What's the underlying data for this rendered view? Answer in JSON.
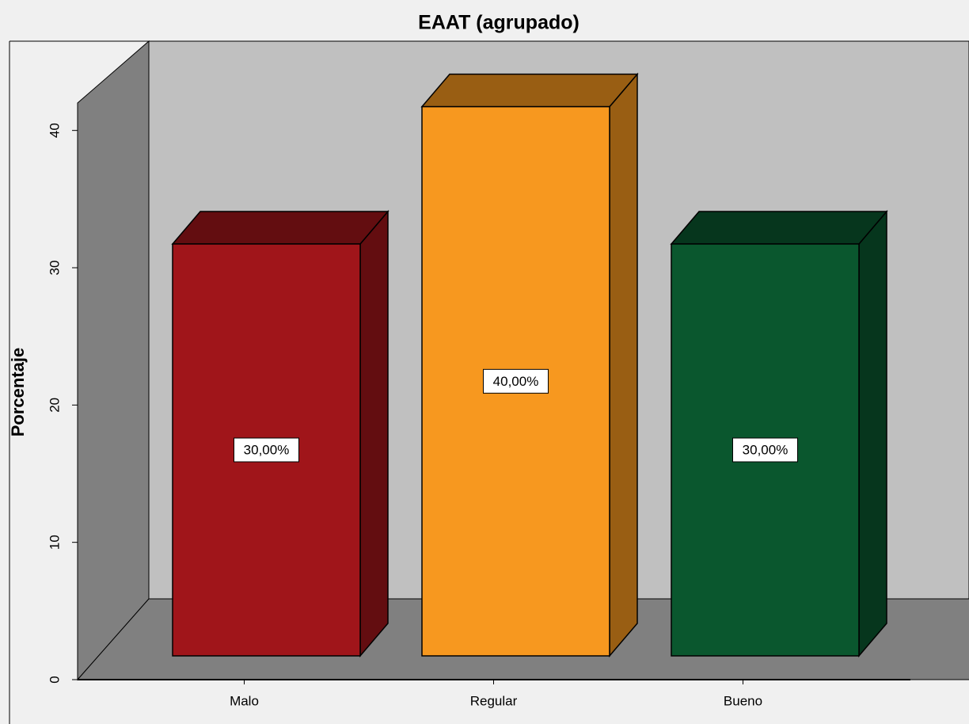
{
  "chart_data": {
    "type": "bar3d",
    "title": "EAAT (agrupado)",
    "y_label": "Porcentaje",
    "categories": [
      "Malo",
      "Regular",
      "Bueno"
    ],
    "values": [
      30,
      40,
      30
    ],
    "value_labels": [
      "30,00%",
      "40,00%",
      "30,00%"
    ],
    "colors": [
      "#a0151a",
      "#f7981f",
      "#0a572e"
    ],
    "ylim": [
      0,
      42
    ],
    "yticks": [
      0,
      10,
      20,
      30,
      40
    ]
  }
}
